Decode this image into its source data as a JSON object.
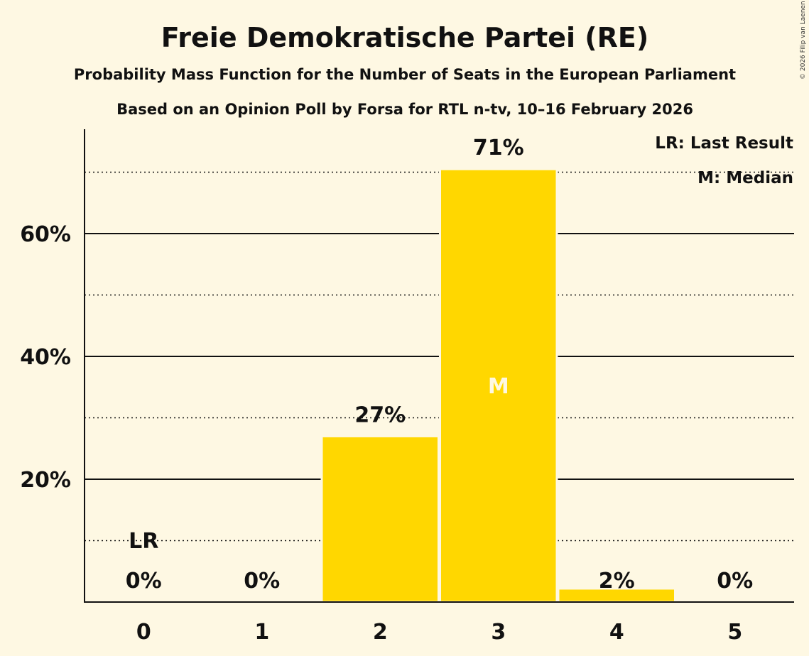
{
  "chart_data": {
    "type": "bar",
    "title": "Freie Demokratische Partei (RE)",
    "subtitle": "Probability Mass Function for the Number of Seats in the European Parliament",
    "subtitle2": "Based on an Opinion Poll by Forsa for RTL n-tv, 10–16 February 2026",
    "categories": [
      "0",
      "1",
      "2",
      "3",
      "4",
      "5"
    ],
    "values": [
      0,
      0,
      27,
      70.5,
      2.2,
      0
    ],
    "value_labels": [
      "0%",
      "0%",
      "27%",
      "71%",
      "2%",
      "0%"
    ],
    "ylim": [
      0,
      77
    ],
    "yticks": [
      20,
      40,
      60
    ],
    "ytick_labels": [
      "20%",
      "40%",
      "60%"
    ],
    "minor_gridlines": [
      10,
      30,
      50,
      70
    ],
    "last_result_index": 0,
    "last_result_label": "LR",
    "median_index": 3,
    "median_label": "M",
    "legend": [
      "LR: Last Result",
      "M: Median"
    ],
    "legend_position": "top-right",
    "bar_color": "#ffd700",
    "copyright": "© 2026 Filip van Laenen"
  }
}
